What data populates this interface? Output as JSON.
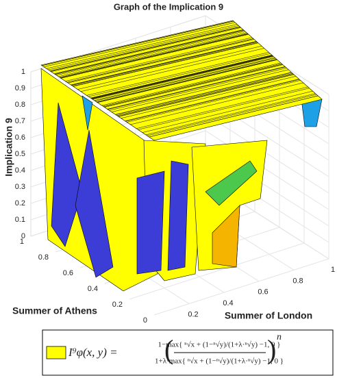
{
  "chart_data": {
    "type": "surface",
    "title": "Graph of the Implication 9",
    "xlabel": "Summer of London",
    "ylabel": "Summer of Athens",
    "zlabel": "Implication 9",
    "xlim": [
      0,
      1
    ],
    "xticks": [
      0.2,
      0.4,
      0.6,
      0.8,
      1
    ],
    "ylim": [
      0,
      1
    ],
    "yticks": [
      0,
      0.2,
      0.4,
      0.6,
      0.8,
      1
    ],
    "zlim": [
      0,
      1
    ],
    "zticks": [
      0,
      0.1,
      0.2,
      0.3,
      0.4,
      0.5,
      0.6,
      0.7,
      0.8,
      0.9,
      1
    ],
    "grid": true,
    "color": "#ffff00",
    "legend": {
      "lhs": "I⁹φ(x, y) =",
      "numerator": "1−max{ ⁿ√x + (1−ⁿ√y)/(1+λ·ⁿ√y) −1, 0 }",
      "denominator": "1+λ·max{ ⁿ√x + (1−ⁿ√y)/(1+λ·ⁿ√y) −1, 0 }",
      "exponent": "n"
    }
  }
}
